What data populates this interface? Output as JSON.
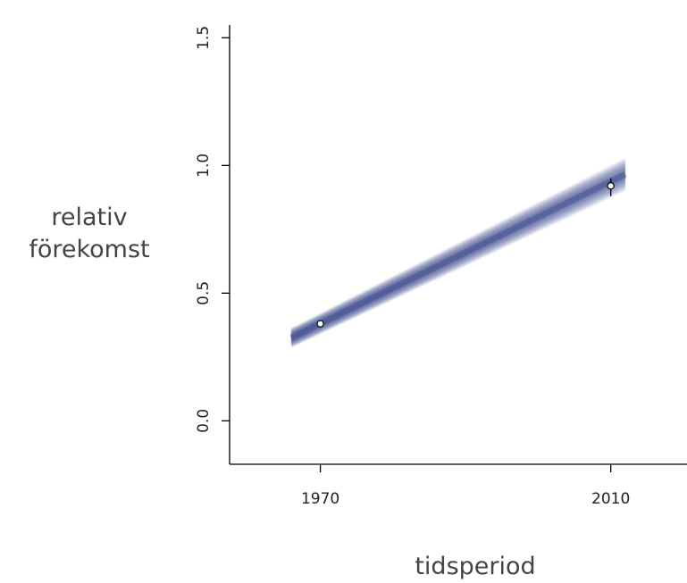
{
  "chart_data": {
    "type": "line",
    "title": "",
    "xlabel": "tidsperiod",
    "ylabel": [
      "relativ",
      "förekomst"
    ],
    "x_ticks": [
      1970,
      2010
    ],
    "y_ticks": [
      "0.0",
      "0.5",
      "1.0",
      "1.5"
    ],
    "xlim": [
      1957.5,
      2020.5
    ],
    "ylim": [
      -0.17,
      1.55
    ],
    "grid": false,
    "band": {
      "x": [
        1966,
        2012
      ],
      "y_mean": [
        0.325,
        0.965
      ],
      "y_lower": [
        0.29,
        0.93
      ],
      "y_upper": [
        0.36,
        1.05
      ]
    },
    "points": [
      {
        "x": 1970,
        "y": 0.38,
        "err_low": 0.37,
        "err_high": 0.39
      },
      {
        "x": 2010,
        "y": 0.92,
        "err_low": 0.88,
        "err_high": 0.95
      }
    ],
    "colors": {
      "band": "#4b5796",
      "axis": "#000000",
      "point_fill": "#ffffff",
      "point_stroke": "#000000"
    }
  }
}
